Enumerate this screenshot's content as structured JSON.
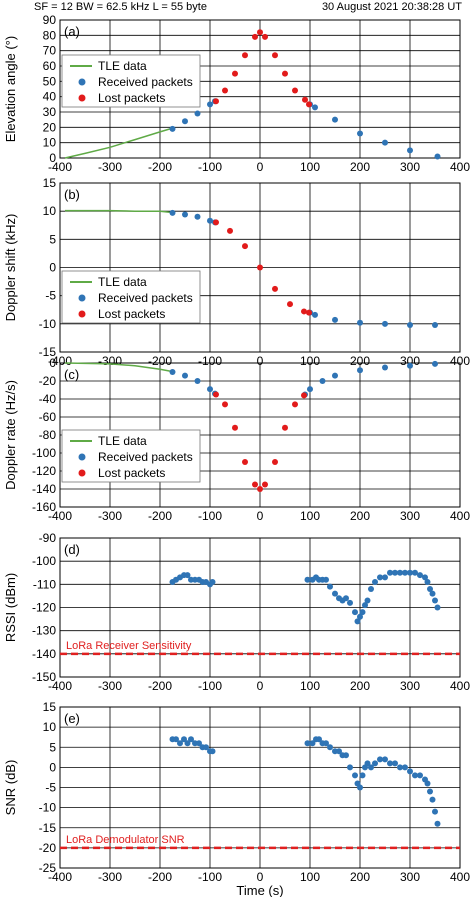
{
  "header": {
    "params": "SF = 12   BW = 62.5 kHz   L = 55 byte",
    "datetime": "30 August 2021   20:38:28 UT"
  },
  "colors": {
    "tle": "#5faa46",
    "received": "#2f74b5",
    "lost": "#e21b1b",
    "reference": "#e02020",
    "grid": "#000000"
  },
  "chart_data": [
    {
      "type": "scatter",
      "panel": "(a)",
      "ylabel": "Elevation angle (°)",
      "xlim": [
        -400,
        400
      ],
      "ylim": [
        0,
        90
      ],
      "xticks": [
        -400,
        -300,
        -200,
        -100,
        0,
        100,
        200,
        300,
        400
      ],
      "yticks": [
        0,
        10,
        20,
        30,
        40,
        50,
        60,
        70,
        80,
        90
      ],
      "legend": [
        "TLE data",
        "Received packets",
        "Lost packets"
      ],
      "legend_position": "middle-left",
      "series": [
        {
          "name": "TLE data",
          "x": [
            -390,
            -350,
            -300,
            -250,
            -200,
            -180
          ],
          "y": [
            0,
            3,
            7,
            12,
            17,
            19
          ]
        },
        {
          "name": "Received packets",
          "x": [
            -175,
            -150,
            -125,
            -100,
            -90,
            100,
            110,
            150,
            200,
            250,
            300,
            355
          ],
          "y": [
            19,
            24,
            29,
            35,
            37,
            35,
            33,
            25,
            16,
            10,
            5,
            1
          ]
        },
        {
          "name": "Lost packets",
          "x": [
            -88,
            -70,
            -50,
            -30,
            -10,
            0,
            10,
            30,
            50,
            70,
            90,
            98
          ],
          "y": [
            37,
            44,
            55,
            67,
            79,
            82,
            79,
            67,
            55,
            44,
            38,
            35
          ]
        }
      ]
    },
    {
      "type": "scatter",
      "panel": "(b)",
      "ylabel": "Doppler shift (kHz)",
      "xlim": [
        -400,
        400
      ],
      "ylim": [
        -15,
        15
      ],
      "xticks": [
        -400,
        -300,
        -200,
        -100,
        0,
        100,
        200,
        300,
        400
      ],
      "yticks": [
        -15,
        -10,
        -5,
        0,
        5,
        10,
        15
      ],
      "legend": [
        "TLE data",
        "Received packets",
        "Lost packets"
      ],
      "legend_position": "bottom-left",
      "series": [
        {
          "name": "TLE data",
          "x": [
            -390,
            -300,
            -250,
            -200,
            -180
          ],
          "y": [
            10.1,
            10.1,
            10,
            10,
            9.8
          ]
        },
        {
          "name": "Received packets",
          "x": [
            -175,
            -150,
            -125,
            -100,
            -90,
            100,
            110,
            150,
            200,
            250,
            300,
            350
          ],
          "y": [
            9.7,
            9.4,
            9.0,
            8.3,
            8.0,
            -8.0,
            -8.4,
            -9.3,
            -9.8,
            -10.0,
            -10.2,
            -10.2
          ]
        },
        {
          "name": "Lost packets",
          "x": [
            -88,
            -60,
            -30,
            0,
            30,
            60,
            88,
            98
          ],
          "y": [
            8.0,
            6.5,
            3.8,
            0,
            -3.8,
            -6.5,
            -7.8,
            -8.0
          ]
        }
      ]
    },
    {
      "type": "scatter",
      "panel": "(c)",
      "ylabel": "Doppler rate (Hz/s)",
      "xlim": [
        -400,
        400
      ],
      "ylim": [
        -160,
        0
      ],
      "xticks": [
        -400,
        -300,
        -200,
        -100,
        0,
        100,
        200,
        300,
        400
      ],
      "yticks": [
        -160,
        -140,
        -120,
        -100,
        -80,
        -60,
        -40,
        -20,
        0
      ],
      "legend": [
        "TLE data",
        "Received packets",
        "Lost packets"
      ],
      "legend_position": "middle-left",
      "series": [
        {
          "name": "TLE data",
          "x": [
            -390,
            -300,
            -250,
            -200,
            -180
          ],
          "y": [
            0,
            -1,
            -3,
            -7,
            -9
          ]
        },
        {
          "name": "Received packets",
          "x": [
            -175,
            -150,
            -125,
            -100,
            -90,
            90,
            100,
            125,
            150,
            200,
            250,
            300,
            350
          ],
          "y": [
            -10,
            -14,
            -20,
            -29,
            -34,
            -35,
            -29,
            -20,
            -14,
            -8,
            -5,
            -3,
            -1
          ]
        },
        {
          "name": "Lost packets",
          "x": [
            -88,
            -70,
            -50,
            -30,
            -10,
            0,
            10,
            30,
            50,
            70,
            88
          ],
          "y": [
            -35,
            -46,
            -72,
            -110,
            -135,
            -140,
            -135,
            -110,
            -72,
            -46,
            -36
          ]
        }
      ]
    },
    {
      "type": "scatter",
      "panel": "(d)",
      "ylabel": "RSSI (dBm)",
      "xlim": [
        -400,
        400
      ],
      "ylim": [
        -150,
        -90
      ],
      "xticks": [
        -400,
        -300,
        -200,
        -100,
        0,
        100,
        200,
        300,
        400
      ],
      "yticks": [
        -150,
        -140,
        -130,
        -120,
        -110,
        -100,
        -90
      ],
      "reference": {
        "label": "LoRa Receiver Sensitivity",
        "y": -140
      },
      "series": [
        {
          "name": "Received packets",
          "x": [
            -175,
            -168,
            -160,
            -152,
            -145,
            -138,
            -130,
            -122,
            -115,
            -108,
            -100,
            -95,
            95,
            105,
            112,
            118,
            125,
            132,
            140,
            150,
            158,
            165,
            172,
            180,
            190,
            195,
            200,
            205,
            210,
            215,
            222,
            230,
            240,
            250,
            260,
            270,
            280,
            290,
            300,
            310,
            320,
            330,
            335,
            340,
            345,
            350,
            355
          ],
          "y": [
            -109,
            -108,
            -107,
            -106,
            -106,
            -108,
            -108,
            -108,
            -109,
            -109,
            -110,
            -109,
            -108,
            -108,
            -107,
            -108,
            -108,
            -108,
            -111,
            -114,
            -116,
            -117,
            -116,
            -118,
            -122,
            -126,
            -124,
            -122,
            -119,
            -117,
            -112,
            -109,
            -107,
            -107,
            -105,
            -105,
            -105,
            -105,
            -105,
            -105,
            -106,
            -107,
            -109,
            -112,
            -114,
            -117,
            -120
          ]
        }
      ]
    },
    {
      "type": "scatter",
      "panel": "(e)",
      "xlabel": "Time (s)",
      "ylabel": "SNR (dB)",
      "xlim": [
        -400,
        400
      ],
      "ylim": [
        -25,
        15
      ],
      "xticks": [
        -400,
        -300,
        -200,
        -100,
        0,
        100,
        200,
        300,
        400
      ],
      "yticks": [
        -25,
        -20,
        -15,
        -10,
        -5,
        0,
        5,
        10,
        15
      ],
      "reference": {
        "label": "LoRa Demodulator SNR",
        "y": -20
      },
      "series": [
        {
          "name": "Received packets",
          "x": [
            -175,
            -168,
            -160,
            -152,
            -145,
            -138,
            -130,
            -122,
            -115,
            -108,
            -100,
            -95,
            95,
            105,
            112,
            118,
            125,
            132,
            140,
            150,
            158,
            165,
            172,
            180,
            190,
            195,
            200,
            205,
            210,
            215,
            222,
            230,
            240,
            250,
            260,
            270,
            280,
            290,
            300,
            310,
            320,
            330,
            335,
            340,
            345,
            350,
            355
          ],
          "y": [
            7,
            7,
            6,
            7,
            6,
            7,
            6,
            6,
            5,
            5,
            4,
            4,
            6,
            6,
            7,
            7,
            6,
            6,
            5,
            4,
            4,
            3,
            3,
            0,
            -2,
            -4,
            -5,
            -2,
            0,
            1,
            0,
            1,
            2,
            2,
            1,
            1,
            0,
            0,
            -1,
            -2,
            -2,
            -3,
            -4,
            -6,
            -8,
            -11,
            -14
          ]
        }
      ]
    }
  ]
}
